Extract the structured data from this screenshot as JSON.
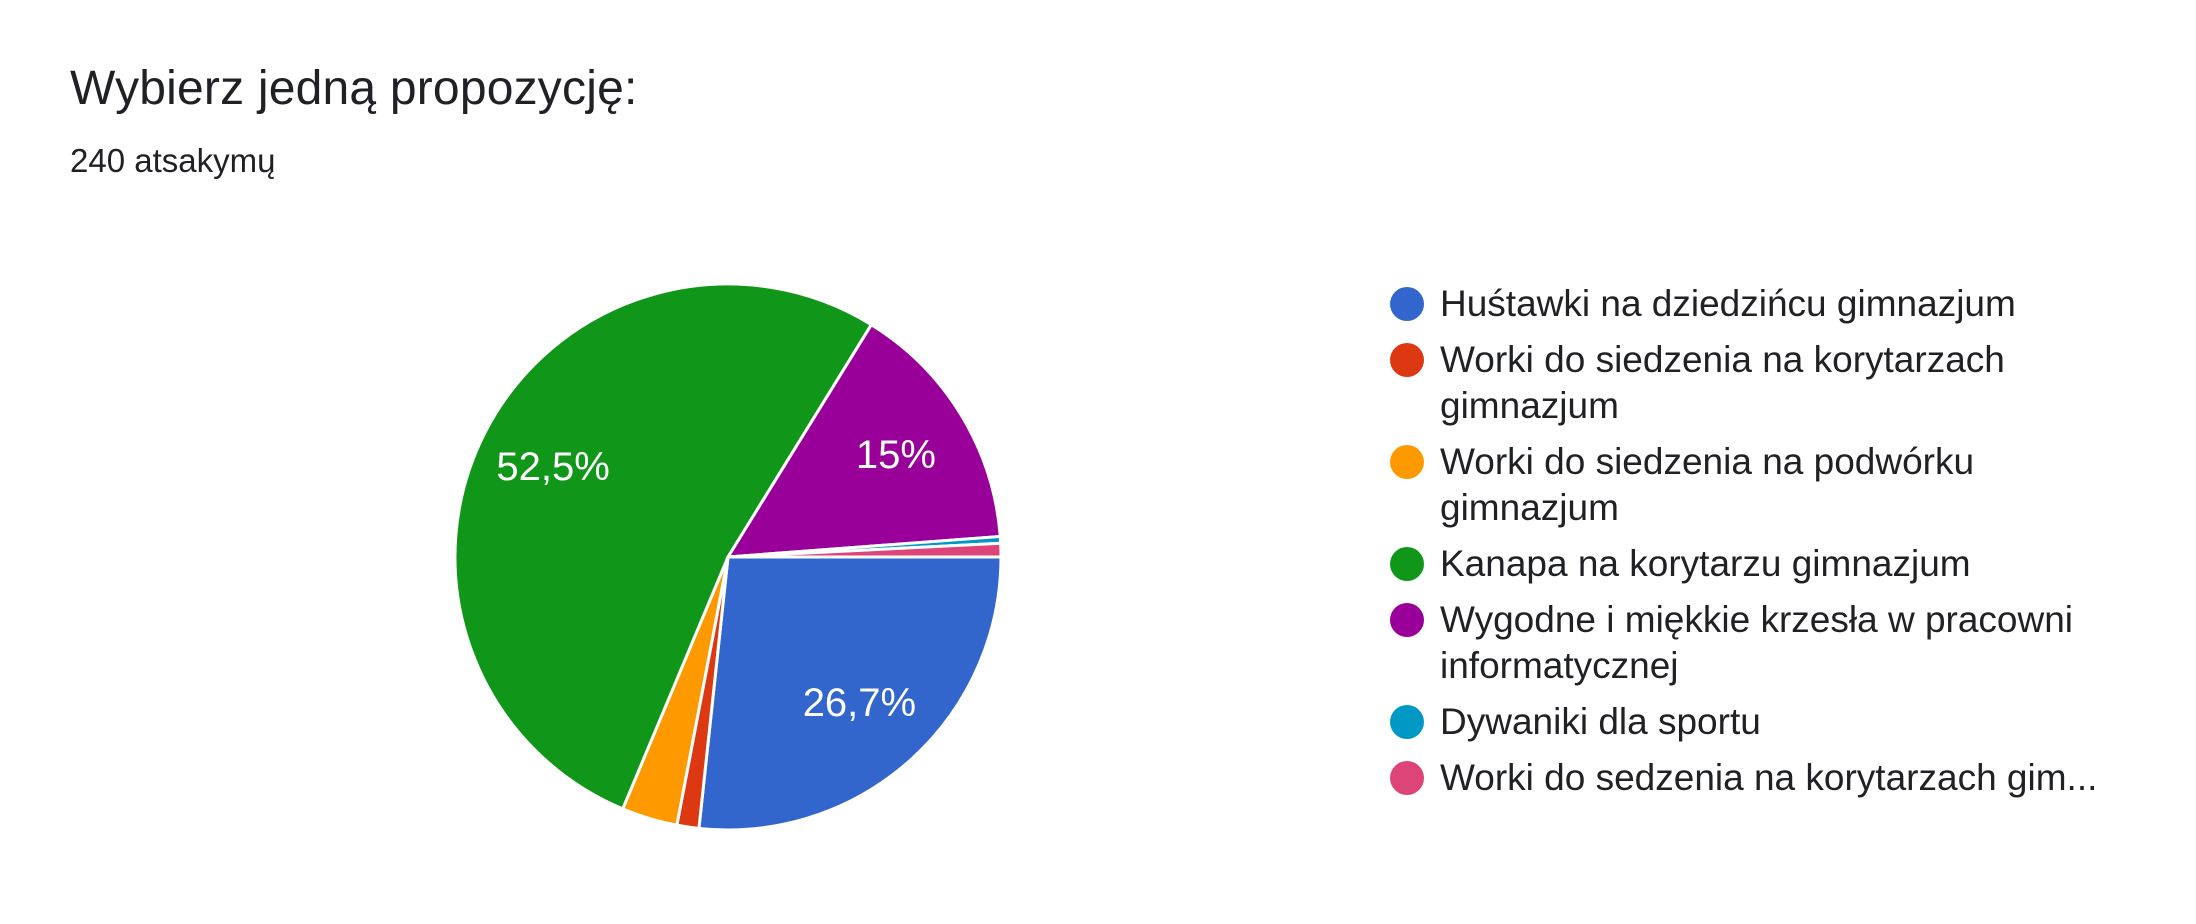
{
  "page": {
    "background_color": "#ffffff",
    "text_color": "#202124",
    "slice_border_color": "#ffffff",
    "percent_label_color": "#ffffff"
  },
  "header": {
    "title": "Wybierz jedną propozycję:",
    "subtitle": "240 atsakymų"
  },
  "chart_data": {
    "type": "pie",
    "title": "Wybierz jedną propozycję:",
    "responses_text": "240 atsakymų",
    "total_responses": 240,
    "legend_position": "right",
    "start_angle": "3-oclock-clockwise",
    "slices": [
      {
        "label": "Huśtawki na dziedzińcu gimnazjum",
        "percent": 26.7,
        "display_percent": "26,7%",
        "color": "#3366CC",
        "legend_lines": [
          "Huśtawki na dziedzińcu gimnazjum"
        ]
      },
      {
        "label": "Worki do siedzenia na korytarzach gimnazjum",
        "percent": 1.3,
        "display_percent": "",
        "color": "#DC3912",
        "legend_lines": [
          "Worki do siedzenia na korytarzach",
          "gimnazjum"
        ]
      },
      {
        "label": "Worki do siedzenia na podwórku gimnazjum",
        "percent": 3.3,
        "display_percent": "",
        "color": "#FF9900",
        "legend_lines": [
          "Worki do siedzenia na podwórku",
          "gimnazjum"
        ]
      },
      {
        "label": "Kanapa na korytarzu gimnazjum",
        "percent": 52.5,
        "display_percent": "52,5%",
        "color": "#109618",
        "legend_lines": [
          "Kanapa na korytarzu gimnazjum"
        ]
      },
      {
        "label": "Wygodne i miękkie krzesła w pracowni informatycznej",
        "percent": 15,
        "display_percent": "15%",
        "color": "#990099",
        "legend_lines": [
          "Wygodne i miękkie krzesła w pracowni",
          "informatycznej"
        ]
      },
      {
        "label": "Dywaniki dla sportu",
        "percent": 0.4,
        "display_percent": "",
        "color": "#0099C6",
        "legend_lines": [
          "Dywaniki dla sportu"
        ]
      },
      {
        "label": "Worki do sedzenia na korytarzach gim...",
        "percent": 0.8,
        "display_percent": "",
        "color": "#DD4477",
        "legend_lines": [
          "Worki do sedzenia na korytarzach gim..."
        ]
      }
    ]
  }
}
